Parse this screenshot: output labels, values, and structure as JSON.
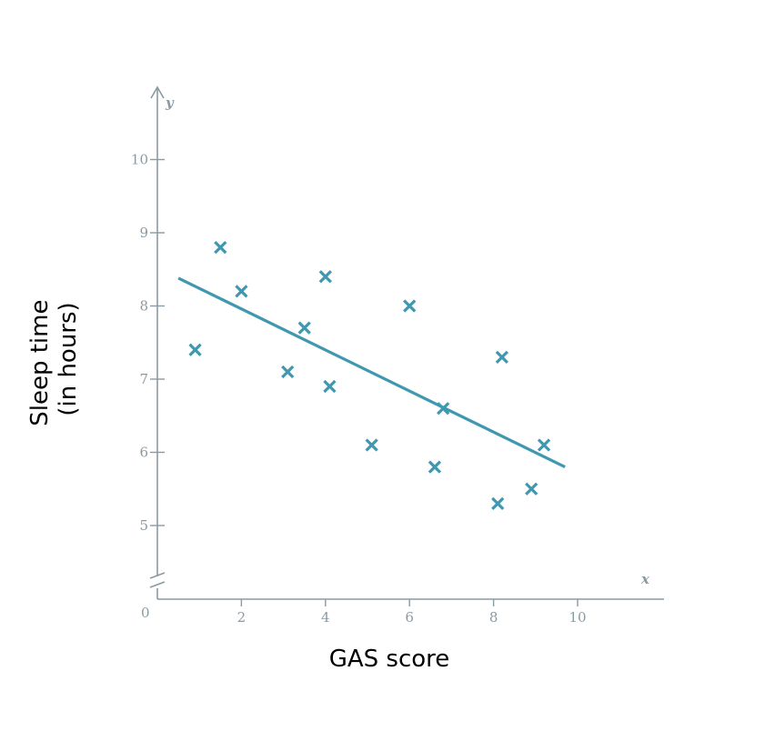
{
  "chart_data": {
    "type": "scatter",
    "title": "",
    "xlabel": "GAS score",
    "ylabel_lines": [
      "Sleep time",
      "(in hours)"
    ],
    "x_axis_symbol": "x",
    "y_axis_symbol": "y",
    "origin_label": "0",
    "x_ticks": [
      2,
      4,
      6,
      8,
      10
    ],
    "y_ticks": [
      5,
      6,
      7,
      8,
      9,
      10
    ],
    "xlim": [
      0,
      12
    ],
    "ylim": [
      4.3,
      11
    ],
    "y_axis_break": true,
    "grid": false,
    "points": [
      {
        "x": 0.9,
        "y": 7.4
      },
      {
        "x": 1.5,
        "y": 8.8
      },
      {
        "x": 2.0,
        "y": 8.2
      },
      {
        "x": 3.1,
        "y": 7.1
      },
      {
        "x": 3.5,
        "y": 7.7
      },
      {
        "x": 4.0,
        "y": 8.4
      },
      {
        "x": 4.1,
        "y": 6.9
      },
      {
        "x": 5.1,
        "y": 6.1
      },
      {
        "x": 6.0,
        "y": 8.0
      },
      {
        "x": 6.6,
        "y": 5.8
      },
      {
        "x": 6.8,
        "y": 6.6
      },
      {
        "x": 8.1,
        "y": 5.3
      },
      {
        "x": 8.2,
        "y": 7.3
      },
      {
        "x": 8.9,
        "y": 5.5
      },
      {
        "x": 9.2,
        "y": 6.1
      }
    ],
    "trend_line": {
      "x1": 0.5,
      "y1": 8.38,
      "x2": 9.7,
      "y2": 5.8
    },
    "colors": {
      "marker": "#3f98b0",
      "axis": "#8a9aa3"
    }
  }
}
